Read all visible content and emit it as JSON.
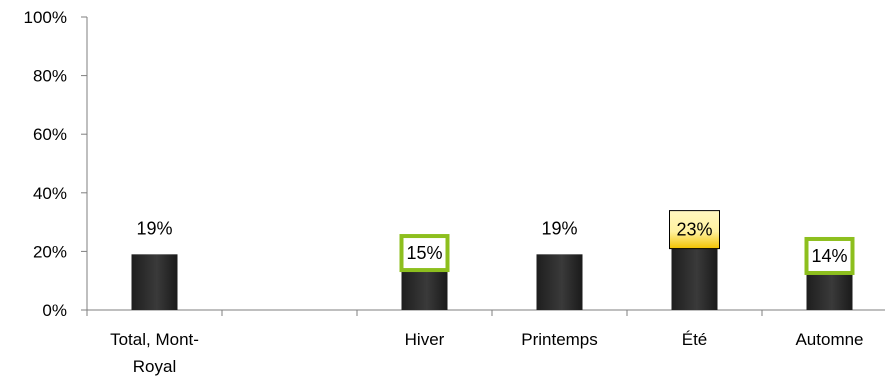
{
  "chart_data": {
    "type": "bar",
    "categories": [
      [
        "Total, Mont-",
        "Royal"
      ],
      [
        ""
      ],
      [
        "Hiver"
      ],
      [
        "Printemps"
      ],
      [
        "Été"
      ],
      [
        "Automne"
      ]
    ],
    "values": [
      19,
      null,
      15,
      19,
      23,
      14
    ],
    "data_labels": [
      "19%",
      "",
      "15%",
      "19%",
      "23%",
      "14%"
    ],
    "label_box": [
      null,
      null,
      "green",
      null,
      "yellow",
      "green"
    ],
    "y_ticks": [
      "0%",
      "20%",
      "40%",
      "60%",
      "80%",
      "100%"
    ],
    "ylim": [
      0,
      100
    ],
    "grid": false,
    "legend": "none",
    "colors": {
      "bar": "#2b2b2b",
      "bar_highlight": "#5a5a5a",
      "green": "#8dbf1e",
      "yellow": "#f2c200",
      "yellow_dark": "#e5a800"
    }
  }
}
